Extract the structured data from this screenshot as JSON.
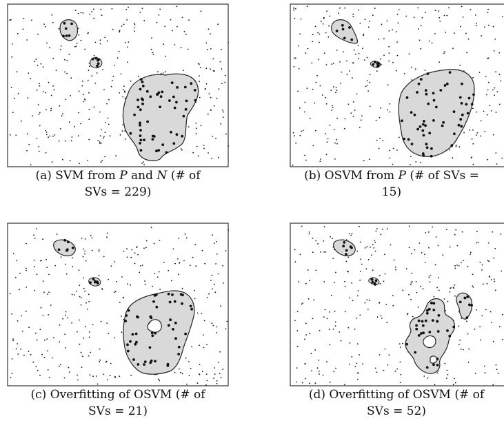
{
  "panels": [
    {
      "id": "a",
      "caption_line1_pre": "(a) SVM from ",
      "caption_var1": "P",
      "caption_mid": " and ",
      "caption_var2": "N",
      "caption_line1_post": " (# of",
      "caption_line2": "SVs = 229)"
    },
    {
      "id": "b",
      "caption_line1_pre": "(b) OSVM from ",
      "caption_var1": "P",
      "caption_mid": "",
      "caption_var2": "",
      "caption_line1_post": " (# of SVs =",
      "caption_line2": "15)"
    },
    {
      "id": "c",
      "caption_line1_pre": "(c) Overfitting of OSVM (# of",
      "caption_var1": "",
      "caption_mid": "",
      "caption_var2": "",
      "caption_line1_post": "",
      "caption_line2": "SVs = 21)"
    },
    {
      "id": "d",
      "caption_line1_pre": "(d) Overfitting of OSVM (# of",
      "caption_var1": "",
      "caption_mid": "",
      "caption_var2": "",
      "caption_line1_post": "",
      "caption_line2": "SVs = 52)"
    }
  ],
  "colors": {
    "region_fill": "#d9d9d9",
    "outline": "#222222",
    "dots": "#111111",
    "frame": "#333333"
  }
}
